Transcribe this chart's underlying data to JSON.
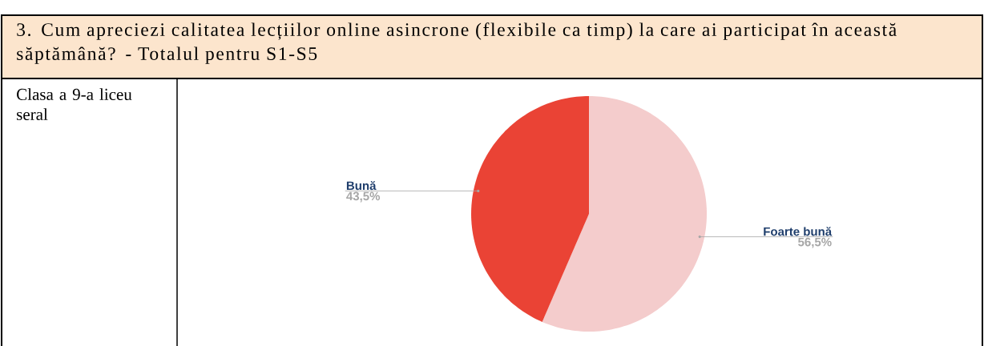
{
  "chart_data": {
    "type": "pie",
    "title": "3. Cum apreciezi calitatea lecțiilor online asincrone (flexibile ca timp) la care ai participat în această săptămână? - Totalul pentru S1-S5",
    "annotations": [
      "Clasa a 9-a liceu seral"
    ],
    "categories": [
      "Foarte bună",
      "Bună"
    ],
    "values": [
      56.5,
      43.5
    ],
    "colors": [
      "#f4cccc",
      "#ea4335"
    ],
    "value_labels": [
      "56,5%",
      "43,5%"
    ]
  }
}
